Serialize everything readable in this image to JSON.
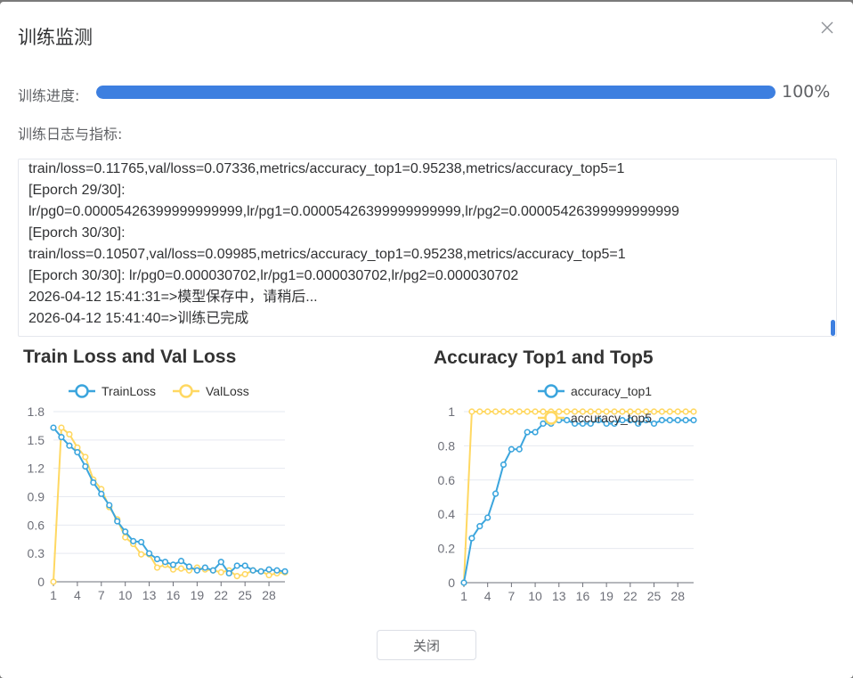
{
  "dialog": {
    "title": "训练监测",
    "close_icon": "close-icon"
  },
  "progress": {
    "label": "训练进度:",
    "value": 100,
    "text": "100%",
    "color": "#3d7fe0"
  },
  "log": {
    "label": "训练日志与指标:",
    "lines": [
      "train/loss=0.11765,val/loss=0.07336,metrics/accuracy_top1=0.95238,metrics/accuracy_top5=1",
      "[Eporch 29/30]:",
      "lr/pg0=0.00005426399999999999,lr/pg1=0.00005426399999999999,lr/pg2=0.00005426399999999999",
      "[Eporch 30/30]:",
      "train/loss=0.10507,val/loss=0.09985,metrics/accuracy_top1=0.95238,metrics/accuracy_top5=1",
      "[Eporch 30/30]: lr/pg0=0.000030702,lr/pg1=0.000030702,lr/pg2=0.000030702",
      "2026-04-12 15:41:31=>模型保存中，请稍后...",
      "2026-04-12 15:41:40=>训练已完成"
    ]
  },
  "footer": {
    "close_label": "关闭"
  },
  "chart_data": [
    {
      "type": "line",
      "title": "Train Loss and Val Loss",
      "x": [
        1,
        2,
        3,
        4,
        5,
        6,
        7,
        8,
        9,
        10,
        11,
        12,
        13,
        14,
        15,
        16,
        17,
        18,
        19,
        20,
        21,
        22,
        23,
        24,
        25,
        26,
        27,
        28,
        29,
        30
      ],
      "x_tick_labels": [
        "1",
        "4",
        "7",
        "10",
        "13",
        "16",
        "19",
        "22",
        "25",
        "28"
      ],
      "y_tick_labels": [
        "0",
        "0.3",
        "0.6",
        "0.9",
        "1.2",
        "1.5",
        "1.8"
      ],
      "ylim": [
        0,
        1.8
      ],
      "grid": true,
      "legend": "top",
      "series": [
        {
          "name": "TrainLoss",
          "color": "#3ba5dd",
          "values": [
            1.63,
            1.53,
            1.44,
            1.37,
            1.22,
            1.05,
            0.93,
            0.81,
            0.64,
            0.53,
            0.43,
            0.42,
            0.3,
            0.24,
            0.21,
            0.18,
            0.22,
            0.16,
            0.12,
            0.15,
            0.12,
            0.21,
            0.09,
            0.17,
            0.17,
            0.12,
            0.11,
            0.13,
            0.12,
            0.11
          ]
        },
        {
          "name": "ValLoss",
          "color": "#ffd862",
          "values": [
            0.0,
            1.63,
            1.56,
            1.42,
            1.32,
            1.08,
            0.98,
            0.79,
            0.66,
            0.47,
            0.4,
            0.29,
            0.29,
            0.15,
            0.18,
            0.13,
            0.14,
            0.12,
            0.15,
            0.13,
            0.12,
            0.1,
            0.12,
            0.06,
            0.08,
            0.12,
            0.11,
            0.07,
            0.09,
            0.1
          ]
        }
      ]
    },
    {
      "type": "line",
      "title": "Accuracy Top1 and Top5",
      "x": [
        1,
        2,
        3,
        4,
        5,
        6,
        7,
        8,
        9,
        10,
        11,
        12,
        13,
        14,
        15,
        16,
        17,
        18,
        19,
        20,
        21,
        22,
        23,
        24,
        25,
        26,
        27,
        28,
        29,
        30
      ],
      "x_tick_labels": [
        "1",
        "4",
        "7",
        "10",
        "13",
        "16",
        "19",
        "22",
        "25",
        "28"
      ],
      "y_tick_labels": [
        "0",
        "0.2",
        "0.4",
        "0.6",
        "0.8",
        "1"
      ],
      "ylim": [
        0,
        1
      ],
      "grid": true,
      "legend": "top",
      "series": [
        {
          "name": "accuracy_top1",
          "color": "#3ba5dd",
          "values": [
            0.0,
            0.26,
            0.33,
            0.38,
            0.52,
            0.69,
            0.78,
            0.78,
            0.88,
            0.88,
            0.93,
            0.93,
            0.95,
            0.95,
            0.93,
            0.93,
            0.93,
            0.95,
            0.93,
            0.93,
            0.95,
            0.95,
            0.93,
            0.95,
            0.93,
            0.95,
            0.95,
            0.95,
            0.95,
            0.95
          ]
        },
        {
          "name": "accuracy_top5",
          "color": "#ffd862",
          "values": [
            0.0,
            1,
            1,
            1,
            1,
            1,
            1,
            1,
            1,
            1,
            1,
            1,
            1,
            1,
            1,
            1,
            1,
            1,
            1,
            1,
            1,
            1,
            1,
            1,
            1,
            1,
            1,
            1,
            1,
            1
          ]
        }
      ]
    }
  ]
}
